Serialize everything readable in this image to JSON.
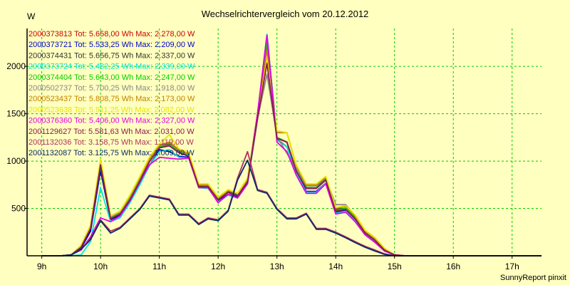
{
  "chart_data": {
    "type": "line",
    "title": "Wechselrichtervergleich vom 20.12.2012",
    "ylabel": "W",
    "footer": "SunnyReport pinxit",
    "ylim": [
      0,
      2400
    ],
    "y_ticks": [
      "500",
      "1000",
      "1500",
      "2000"
    ],
    "y_tick_values": [
      500,
      1000,
      1500,
      2000
    ],
    "x_ticks": [
      "9h",
      "10h",
      "11h",
      "12h",
      "13h",
      "14h",
      "15h",
      "16h",
      "17h"
    ],
    "x_tick_values": [
      9,
      10,
      11,
      12,
      13,
      14,
      15,
      16,
      17
    ],
    "xlim": [
      8.75,
      17.5
    ],
    "grid": true,
    "legend_placement": "top-left",
    "x": [
      9.0,
      9.17,
      9.33,
      9.5,
      9.67,
      9.83,
      10.0,
      10.17,
      10.33,
      10.5,
      10.67,
      10.83,
      11.0,
      11.17,
      11.33,
      11.5,
      11.67,
      11.83,
      12.0,
      12.17,
      12.33,
      12.5,
      12.67,
      12.83,
      13.0,
      13.17,
      13.33,
      13.5,
      13.67,
      13.83,
      14.0,
      14.17,
      14.33,
      14.5,
      14.67,
      14.83,
      15.0,
      15.17,
      15.33,
      15.5,
      15.67,
      15.83,
      16.0,
      16.17,
      16.33,
      16.5,
      16.67,
      16.83,
      17.0,
      17.17,
      17.33,
      17.5
    ],
    "series": [
      {
        "name": "2000373813 Tot: 5.658,00 Wh Max: 2.278,00 W",
        "color": "#cc0000",
        "values": [
          0,
          0,
          0,
          10,
          100,
          300,
          980,
          400,
          450,
          600,
          800,
          1000,
          1150,
          1170,
          1100,
          1060,
          740,
          730,
          600,
          670,
          630,
          780,
          1500,
          2278,
          1250,
          1200,
          900,
          720,
          720,
          800,
          480,
          500,
          400,
          240,
          160,
          60,
          10,
          0,
          0,
          0,
          0,
          0,
          0,
          0,
          0,
          0,
          0,
          0,
          0,
          0,
          0,
          0
        ]
      },
      {
        "name": "2000373721 Tot: 5.533,25 Wh Max: 2.209,00 W",
        "color": "#0000cc",
        "values": [
          0,
          0,
          0,
          10,
          80,
          260,
          900,
          380,
          430,
          570,
          760,
          950,
          1120,
          1100,
          1050,
          1040,
          720,
          720,
          580,
          650,
          620,
          760,
          1450,
          2209,
          1230,
          1150,
          880,
          680,
          680,
          770,
          460,
          480,
          380,
          230,
          150,
          55,
          10,
          0,
          0,
          0,
          0,
          0,
          0,
          0,
          0,
          0,
          0,
          0,
          0,
          0,
          0,
          0
        ]
      },
      {
        "name": "2000374431 Tot: 5.656,75 Wh Max: 2.337,00 W",
        "color": "#333333",
        "values": [
          0,
          0,
          0,
          10,
          100,
          300,
          1000,
          400,
          450,
          600,
          800,
          1000,
          1150,
          1180,
          1100,
          1060,
          740,
          740,
          600,
          680,
          640,
          790,
          1500,
          2337,
          1250,
          1200,
          900,
          720,
          720,
          810,
          490,
          500,
          400,
          240,
          160,
          60,
          10,
          0,
          0,
          0,
          0,
          0,
          0,
          0,
          0,
          0,
          0,
          0,
          0,
          0,
          0,
          0
        ]
      },
      {
        "name": "2000373724 Tot: 5.482,25 Wh Max: 2.339,00 W",
        "color": "#00e5e5",
        "values": [
          0,
          0,
          0,
          0,
          10,
          150,
          720,
          360,
          400,
          560,
          750,
          950,
          1100,
          1120,
          1040,
          1030,
          720,
          710,
          570,
          640,
          610,
          760,
          1450,
          2339,
          1220,
          1150,
          870,
          670,
          670,
          770,
          450,
          470,
          370,
          230,
          150,
          50,
          10,
          0,
          0,
          0,
          0,
          0,
          0,
          0,
          0,
          0,
          0,
          0,
          0,
          0,
          0,
          0
        ]
      },
      {
        "name": "2000374404 Tot: 5.643,00 Wh Max: 2.247,00 W",
        "color": "#00cc00",
        "values": [
          0,
          0,
          0,
          10,
          100,
          300,
          950,
          400,
          450,
          600,
          800,
          1000,
          1150,
          1170,
          1100,
          1060,
          740,
          730,
          600,
          670,
          630,
          780,
          1500,
          2247,
          1250,
          1200,
          900,
          720,
          720,
          800,
          480,
          500,
          400,
          240,
          160,
          60,
          10,
          0,
          0,
          0,
          0,
          0,
          0,
          0,
          0,
          0,
          0,
          0,
          0,
          0,
          0,
          0
        ]
      },
      {
        "name": "2000502737 Tot: 5.700,25 Wh Max: 1.918,00 W",
        "color": "#888888",
        "values": [
          0,
          0,
          0,
          10,
          110,
          310,
          1000,
          410,
          460,
          620,
          820,
          1010,
          1160,
          1190,
          1110,
          1070,
          750,
          740,
          610,
          690,
          650,
          800,
          1450,
          1918,
          1260,
          1080,
          920,
          740,
          740,
          820,
          540,
          540,
          420,
          250,
          170,
          70,
          10,
          0,
          0,
          0,
          0,
          0,
          0,
          0,
          0,
          0,
          0,
          0,
          0,
          0,
          0,
          0
        ]
      },
      {
        "name": "2000523437 Tot: 5.808,75 Wh Max: 2.173,00 W",
        "color": "#c08000",
        "values": [
          0,
          0,
          0,
          10,
          110,
          320,
          1010,
          420,
          470,
          630,
          830,
          1020,
          1170,
          1200,
          1120,
          1080,
          750,
          750,
          610,
          690,
          660,
          810,
          1500,
          2173,
          1300,
          1300,
          950,
          750,
          750,
          830,
          500,
          520,
          420,
          260,
          180,
          70,
          10,
          0,
          0,
          0,
          0,
          0,
          0,
          0,
          0,
          0,
          0,
          0,
          0,
          0,
          0,
          0
        ]
      },
      {
        "name": "2000523638 Tot: 5.911,25 Wh Max: 2.082,00 W",
        "color": "#e5e500",
        "values": [
          0,
          0,
          0,
          10,
          110,
          320,
          1020,
          420,
          470,
          640,
          840,
          1040,
          1180,
          1280,
          1130,
          1090,
          760,
          760,
          620,
          700,
          660,
          820,
          1450,
          2082,
          1320,
          1300,
          960,
          760,
          760,
          840,
          510,
          530,
          430,
          270,
          190,
          80,
          10,
          0,
          0,
          0,
          0,
          0,
          0,
          0,
          0,
          0,
          0,
          0,
          0,
          0,
          0,
          0
        ]
      },
      {
        "name": "2000376360 Tot: 5.406,00 Wh Max: 2.327,00 W",
        "color": "#e500e5",
        "values": [
          0,
          0,
          0,
          10,
          60,
          200,
          400,
          360,
          420,
          580,
          780,
          960,
          1040,
          1030,
          1020,
          1030,
          720,
          720,
          560,
          650,
          610,
          760,
          1500,
          2327,
          1200,
          1100,
          850,
          660,
          660,
          760,
          440,
          460,
          360,
          220,
          140,
          50,
          10,
          0,
          0,
          0,
          0,
          0,
          0,
          0,
          0,
          0,
          0,
          0,
          0,
          0,
          0,
          0
        ]
      },
      {
        "name": "2001129627 Tot: 5.581,63 Wh Max: 2.031,00 W",
        "color": "#8b1a4a",
        "values": [
          0,
          0,
          0,
          10,
          90,
          290,
          960,
          390,
          440,
          590,
          790,
          990,
          1140,
          1160,
          1090,
          1050,
          730,
          730,
          590,
          670,
          630,
          780,
          1450,
          2031,
          1240,
          1200,
          890,
          710,
          710,
          800,
          470,
          490,
          390,
          240,
          160,
          60,
          10,
          0,
          0,
          0,
          0,
          0,
          0,
          0,
          0,
          0,
          0,
          0,
          0,
          0,
          0,
          0
        ]
      },
      {
        "name": "2001132036 Tot: 3.158,75 Wh Max: 1.119,00 W",
        "color": "#b03060",
        "values": [
          0,
          0,
          0,
          10,
          70,
          180,
          380,
          260,
          300,
          400,
          500,
          640,
          620,
          600,
          440,
          440,
          340,
          400,
          380,
          480,
          820,
          1100,
          700,
          670,
          500,
          400,
          400,
          450,
          290,
          290,
          250,
          200,
          150,
          100,
          60,
          20,
          0,
          0,
          0,
          0,
          0,
          0,
          0,
          0,
          0,
          0,
          0,
          0,
          0,
          0,
          0,
          0
        ]
      },
      {
        "name": "2001132087 Tot: 3.125,75 Wh Max: 1.009,00 W",
        "color": "#0a2a66",
        "values": [
          0,
          0,
          0,
          10,
          70,
          170,
          370,
          240,
          290,
          390,
          490,
          630,
          610,
          590,
          430,
          430,
          330,
          390,
          370,
          470,
          800,
          1009,
          690,
          660,
          490,
          390,
          390,
          440,
          280,
          280,
          240,
          190,
          140,
          90,
          50,
          15,
          0,
          0,
          0,
          0,
          0,
          0,
          0,
          0,
          0,
          0,
          0,
          0,
          0,
          0,
          0,
          0
        ]
      }
    ]
  }
}
